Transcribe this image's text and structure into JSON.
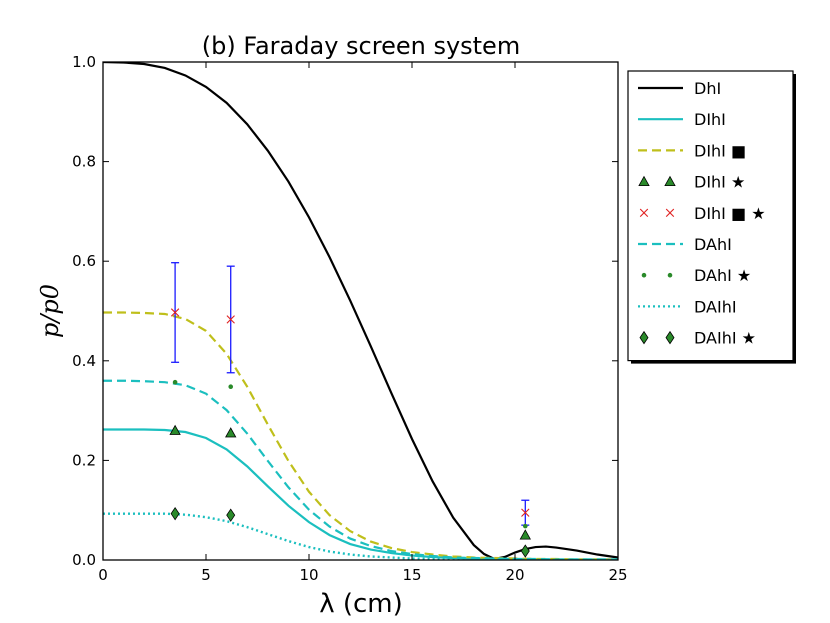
{
  "chart_data": {
    "type": "line",
    "title": "(b) Faraday screen system",
    "xlabel": "λ (cm)",
    "ylabel": "p/p0",
    "xlim": [
      0,
      25
    ],
    "ylim": [
      0,
      1.0
    ],
    "xticks": [
      0,
      5,
      10,
      15,
      20,
      25
    ],
    "xtick_labels": [
      "0",
      "5",
      "10",
      "15",
      "20",
      "25"
    ],
    "yticks": [
      0,
      0.2,
      0.4,
      0.6,
      0.8,
      1.0
    ],
    "ytick_labels": [
      "0.0",
      "0.2",
      "0.4",
      "0.6",
      "0.8",
      "1.0"
    ],
    "grid": false,
    "legend_position": "outside-right",
    "series": [
      {
        "name": "DhI",
        "style": "solid",
        "color": "#000000",
        "marker": "none",
        "x": [
          0,
          1,
          2,
          3,
          4,
          5,
          6,
          7,
          8,
          9,
          10,
          11,
          12,
          13,
          14,
          15,
          16,
          17,
          18,
          18.5,
          19,
          19.5,
          20,
          20.5,
          21,
          21.5,
          22,
          23,
          24,
          25
        ],
        "y": [
          1.0,
          0.999,
          0.996,
          0.988,
          0.973,
          0.95,
          0.918,
          0.875,
          0.822,
          0.76,
          0.688,
          0.608,
          0.521,
          0.429,
          0.335,
          0.243,
          0.158,
          0.085,
          0.03,
          0.012,
          0.002,
          0.006,
          0.015,
          0.022,
          0.026,
          0.027,
          0.025,
          0.019,
          0.011,
          0.005
        ]
      },
      {
        "name": "DIhI",
        "style": "solid",
        "color": "#1bbfbf",
        "marker": "none",
        "x": [
          0,
          1,
          2,
          3,
          4,
          5,
          6,
          7,
          8,
          9,
          10,
          11,
          12,
          13,
          14,
          15,
          16,
          17,
          18,
          19,
          20,
          21,
          22,
          23,
          24,
          25
        ],
        "y": [
          0.262,
          0.262,
          0.262,
          0.261,
          0.257,
          0.245,
          0.222,
          0.188,
          0.148,
          0.109,
          0.076,
          0.05,
          0.032,
          0.021,
          0.014,
          0.009,
          0.006,
          0.004,
          0.003,
          0.002,
          0.002,
          0.001,
          0.001,
          0.001,
          0.001,
          0.001
        ]
      },
      {
        "name": "DIhI ■",
        "style": "dashed",
        "color": "#bfbf1b",
        "marker": "none",
        "x": [
          0,
          1,
          2,
          3,
          4,
          5,
          6,
          7,
          8,
          9,
          10,
          11,
          12,
          13,
          14,
          15,
          16,
          17,
          18,
          19,
          20,
          21,
          22,
          23,
          24,
          25
        ],
        "y": [
          0.497,
          0.497,
          0.496,
          0.494,
          0.484,
          0.46,
          0.414,
          0.348,
          0.272,
          0.199,
          0.137,
          0.09,
          0.058,
          0.037,
          0.024,
          0.016,
          0.011,
          0.007,
          0.005,
          0.004,
          0.003,
          0.002,
          0.002,
          0.001,
          0.001,
          0.001
        ]
      },
      {
        "name": "DIhI ★",
        "style": "none",
        "color": "#2a8a2a",
        "marker": "triangle",
        "x": [
          3.5,
          6.2,
          20.5
        ],
        "y": [
          0.26,
          0.255,
          0.05
        ]
      },
      {
        "name": "DIhI ■ ★",
        "style": "none",
        "color": "#e02020",
        "marker": "x",
        "x": [
          3.5,
          6.2,
          20.5
        ],
        "y": [
          0.497,
          0.483,
          0.095
        ],
        "err": [
          0.1,
          0.107,
          0.025
        ]
      },
      {
        "name": "DAhI",
        "style": "dashed",
        "color": "#1bbfbf",
        "marker": "none",
        "x": [
          0,
          1,
          2,
          3,
          4,
          5,
          6,
          7,
          8,
          9,
          10,
          11,
          12,
          13,
          14,
          15,
          16,
          17,
          18,
          19,
          20,
          21,
          22,
          23,
          24,
          25
        ],
        "y": [
          0.36,
          0.36,
          0.359,
          0.357,
          0.351,
          0.334,
          0.301,
          0.254,
          0.199,
          0.146,
          0.101,
          0.067,
          0.043,
          0.028,
          0.018,
          0.012,
          0.008,
          0.005,
          0.004,
          0.003,
          0.002,
          0.002,
          0.001,
          0.001,
          0.001,
          0.001
        ]
      },
      {
        "name": "DAhI ★",
        "style": "none",
        "color": "#2a8a2a",
        "marker": "dot",
        "x": [
          3.5,
          6.2,
          20.5
        ],
        "y": [
          0.357,
          0.348,
          0.068
        ]
      },
      {
        "name": "DAIhI",
        "style": "dotted",
        "color": "#1bbfbf",
        "marker": "none",
        "x": [
          0,
          1,
          2,
          3,
          4,
          5,
          6,
          7,
          8,
          9,
          10,
          11,
          12,
          13,
          14,
          15,
          16,
          17,
          18,
          19,
          20,
          21,
          22,
          23,
          24,
          25
        ],
        "y": [
          0.093,
          0.093,
          0.093,
          0.093,
          0.091,
          0.086,
          0.078,
          0.066,
          0.052,
          0.038,
          0.026,
          0.017,
          0.011,
          0.007,
          0.005,
          0.003,
          0.002,
          0.001,
          0.001,
          0.001,
          0.001,
          0.0,
          0.0,
          0.0,
          0.0,
          0.0
        ]
      },
      {
        "name": "DAIhI ★",
        "style": "none",
        "color": "#2a8a2a",
        "marker": "diamond",
        "x": [
          3.5,
          6.2,
          20.5
        ],
        "y": [
          0.093,
          0.09,
          0.018
        ]
      }
    ]
  }
}
